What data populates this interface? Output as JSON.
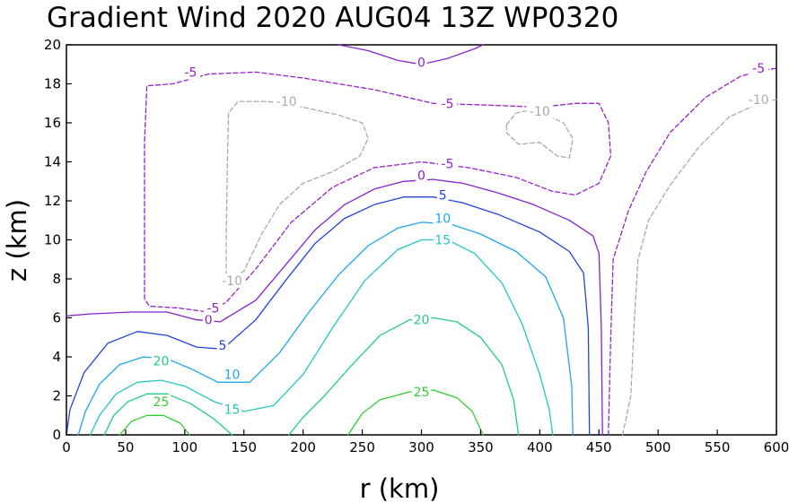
{
  "chart_data": {
    "type": "contour",
    "title": "Gradient Wind 2020 AUG04 13Z  WP0320",
    "xlabel": "r (km)",
    "ylabel": "z (km)",
    "xlim": [
      0,
      600
    ],
    "ylim": [
      0,
      20
    ],
    "x_ticks": [
      0,
      50,
      100,
      150,
      200,
      250,
      300,
      350,
      400,
      450,
      500,
      550,
      600
    ],
    "y_ticks": [
      0,
      2,
      4,
      6,
      8,
      10,
      12,
      14,
      16,
      18,
      20
    ],
    "x_tick_labels": [
      "0",
      "50",
      "100",
      "150",
      "200",
      "250",
      "300",
      "350",
      "400",
      "450",
      "500",
      "550",
      "600"
    ],
    "y_tick_labels": [
      "0",
      "2",
      "4",
      "6",
      "8",
      "10",
      "12",
      "14",
      "16",
      "18",
      "20"
    ],
    "grid": false,
    "contours": [
      {
        "level": 25,
        "label": "25",
        "color": "#33cc33",
        "dash": false,
        "lines": [
          [
            [
              45,
              0
            ],
            [
              55,
              0.7
            ],
            [
              68,
              1.0
            ],
            [
              82,
              1.0
            ],
            [
              96,
              0.6
            ],
            [
              104,
              0
            ]
          ],
          [
            [
              238,
              0
            ],
            [
              250,
              1.1
            ],
            [
              265,
              1.8
            ],
            [
              290,
              2.2
            ],
            [
              310,
              2.3
            ],
            [
              330,
              1.9
            ],
            [
              343,
              1.2
            ],
            [
              352,
              0
            ]
          ]
        ],
        "labels": [
          {
            "x": 80,
            "y": 1.7
          },
          {
            "x": 300,
            "y": 2.2
          }
        ]
      },
      {
        "level": 20,
        "label": "20",
        "color": "#22cc88",
        "dash": false,
        "lines": [
          [
            [
              32,
              0
            ],
            [
              40,
              1.0
            ],
            [
              52,
              1.7
            ],
            [
              68,
              2.1
            ],
            [
              85,
              2.1
            ],
            [
              105,
              1.6
            ],
            [
              125,
              0.8
            ],
            [
              140,
              0
            ]
          ],
          [
            [
              188,
              0
            ],
            [
              200,
              0.9
            ],
            [
              218,
              2.0
            ],
            [
              240,
              3.5
            ],
            [
              265,
              5.1
            ],
            [
              290,
              5.9
            ],
            [
              310,
              6.0
            ],
            [
              330,
              5.8
            ],
            [
              350,
              5.0
            ],
            [
              368,
              3.6
            ],
            [
              378,
              1.8
            ],
            [
              382,
              0
            ]
          ]
        ],
        "labels": [
          {
            "x": 80,
            "y": 3.8
          },
          {
            "x": 300,
            "y": 5.9
          }
        ]
      },
      {
        "level": 15,
        "label": "15",
        "color": "#22c8c0",
        "dash": false,
        "lines": [
          [
            [
              20,
              0
            ],
            [
              28,
              1.0
            ],
            [
              42,
              2.1
            ],
            [
              60,
              2.7
            ],
            [
              80,
              2.8
            ],
            [
              100,
              2.5
            ],
            [
              125,
              1.7
            ],
            [
              150,
              1.2
            ],
            [
              175,
              1.5
            ],
            [
              200,
              3.1
            ],
            [
              225,
              5.5
            ],
            [
              252,
              7.9
            ],
            [
              280,
              9.5
            ],
            [
              300,
              10.0
            ],
            [
              322,
              10.0
            ],
            [
              345,
              9.3
            ],
            [
              368,
              7.8
            ],
            [
              385,
              5.7
            ],
            [
              400,
              3.1
            ],
            [
              408,
              1.3
            ],
            [
              411,
              0
            ]
          ]
        ],
        "labels": [
          {
            "x": 140,
            "y": 1.3
          },
          {
            "x": 318,
            "y": 10.0
          }
        ]
      },
      {
        "level": 10,
        "label": "10",
        "color": "#1ea6f0",
        "dash": false,
        "lines": [
          [
            [
              10,
              0
            ],
            [
              16,
              1.2
            ],
            [
              28,
              2.6
            ],
            [
              45,
              3.6
            ],
            [
              65,
              4.0
            ],
            [
              85,
              3.9
            ],
            [
              105,
              3.4
            ],
            [
              128,
              2.7
            ],
            [
              155,
              2.7
            ],
            [
              180,
              4.2
            ],
            [
              205,
              6.3
            ],
            [
              230,
              8.2
            ],
            [
              255,
              9.7
            ],
            [
              280,
              10.6
            ],
            [
              300,
              10.9
            ],
            [
              325,
              10.8
            ],
            [
              350,
              10.3
            ],
            [
              380,
              9.4
            ],
            [
              405,
              8.1
            ],
            [
              420,
              6.0
            ],
            [
              427,
              2.5
            ],
            [
              428,
              0
            ]
          ]
        ],
        "labels": [
          {
            "x": 140,
            "y": 3.1
          },
          {
            "x": 318,
            "y": 11.1
          }
        ]
      },
      {
        "level": 5,
        "label": "5",
        "color": "#2244dd",
        "dash": false,
        "lines": [
          [
            [
              0,
              0
            ],
            [
              3,
              1.3
            ],
            [
              15,
              3.2
            ],
            [
              35,
              4.7
            ],
            [
              60,
              5.3
            ],
            [
              85,
              5.1
            ],
            [
              110,
              4.5
            ],
            [
              132,
              4.4
            ],
            [
              160,
              5.9
            ],
            [
              185,
              7.9
            ],
            [
              210,
              9.8
            ],
            [
              235,
              11.1
            ],
            [
              260,
              11.8
            ],
            [
              285,
              12.2
            ],
            [
              310,
              12.2
            ],
            [
              335,
              11.9
            ],
            [
              365,
              11.3
            ],
            [
              400,
              10.4
            ],
            [
              425,
              9.4
            ],
            [
              437,
              8.3
            ],
            [
              441,
              5.5
            ],
            [
              442,
              0
            ]
          ]
        ],
        "labels": [
          {
            "x": 132,
            "y": 4.6
          },
          {
            "x": 318,
            "y": 12.3
          }
        ]
      },
      {
        "level": 0,
        "label": "0",
        "color": "#8822cc",
        "dash": false,
        "lines": [
          [
            [
              0,
              6.1
            ],
            [
              20,
              6.2
            ],
            [
              55,
              6.3
            ],
            [
              85,
              6.3
            ],
            [
              110,
              5.9
            ],
            [
              130,
              5.8
            ],
            [
              160,
              6.9
            ],
            [
              185,
              8.7
            ],
            [
              210,
              10.5
            ],
            [
              235,
              11.8
            ],
            [
              260,
              12.6
            ],
            [
              285,
              13.0
            ],
            [
              310,
              13.1
            ],
            [
              335,
              12.9
            ],
            [
              365,
              12.4
            ],
            [
              395,
              11.8
            ],
            [
              425,
              11.0
            ],
            [
              445,
              10.2
            ],
            [
              450,
              9.3
            ],
            [
              452,
              5.5
            ],
            [
              453,
              0
            ]
          ],
          [
            [
              230,
              20
            ],
            [
              255,
              19.7
            ],
            [
              280,
              19.2
            ],
            [
              300,
              19.0
            ],
            [
              322,
              19.3
            ],
            [
              345,
              19.8
            ],
            [
              352,
              20
            ]
          ]
        ],
        "labels": [
          {
            "x": 120,
            "y": 5.9
          },
          {
            "x": 300,
            "y": 13.3
          },
          {
            "x": 300,
            "y": 19.1
          }
        ]
      },
      {
        "level": -5,
        "label": "-5",
        "color": "#9922cc",
        "dash": true,
        "lines": [
          [
            [
              458,
              0
            ],
            [
              460,
              5.0
            ],
            [
              462,
              9.0
            ],
            [
              475,
              11.5
            ],
            [
              490,
              13.5
            ],
            [
              510,
              15.5
            ],
            [
              540,
              17.3
            ],
            [
              570,
              18.4
            ],
            [
              590,
              18.7
            ],
            [
              600,
              18.8
            ]
          ],
          [
            [
              120,
              6.3
            ],
            [
              135,
              6.8
            ],
            [
              160,
              8.5
            ],
            [
              190,
              10.9
            ],
            [
              225,
              12.7
            ],
            [
              260,
              13.7
            ],
            [
              300,
              14.0
            ],
            [
              340,
              13.7
            ],
            [
              380,
              13.2
            ],
            [
              410,
              12.5
            ],
            [
              430,
              12.3
            ],
            [
              450,
              12.9
            ],
            [
              460,
              14.3
            ],
            [
              458,
              16.0
            ],
            [
              450,
              17.0
            ],
            [
              430,
              17.0
            ],
            [
              400,
              16.8
            ],
            [
              360,
              16.9
            ],
            [
              310,
              17.0
            ],
            [
              260,
              17.7
            ],
            [
              200,
              18.3
            ],
            [
              160,
              18.6
            ],
            [
              120,
              18.5
            ],
            [
              90,
              18.0
            ],
            [
              68,
              17.9
            ],
            [
              66,
              15.0
            ],
            [
              66,
              7.0
            ],
            [
              70,
              6.6
            ],
            [
              95,
              6.5
            ],
            [
              120,
              6.3
            ]
          ]
        ],
        "labels": [
          {
            "x": 105,
            "y": 18.6
          },
          {
            "x": 322,
            "y": 17.0
          },
          {
            "x": 322,
            "y": 13.9
          },
          {
            "x": 124,
            "y": 6.5
          },
          {
            "x": 585,
            "y": 18.8
          }
        ]
      },
      {
        "level": -10,
        "label": "-10",
        "color": "#aaaaaa",
        "dash": true,
        "lines": [
          [
            [
              470,
              0
            ],
            [
              477,
              2.0
            ],
            [
              480,
              6.0
            ],
            [
              483,
              9.0
            ],
            [
              492,
              11.0
            ],
            [
              510,
              12.8
            ],
            [
              535,
              14.8
            ],
            [
              560,
              16.3
            ],
            [
              585,
              17.0
            ],
            [
              600,
              17.2
            ]
          ],
          [
            [
              135,
              7.8
            ],
            [
              135,
              10.0
            ],
            [
              136,
              14.0
            ],
            [
              137,
              16.5
            ],
            [
              145,
              17.1
            ],
            [
              170,
              17.1
            ],
            [
              200,
              16.8
            ],
            [
              230,
              16.4
            ],
            [
              250,
              16.0
            ],
            [
              255,
              15.2
            ],
            [
              248,
              14.3
            ],
            [
              225,
              13.5
            ],
            [
              200,
              12.9
            ],
            [
              180,
              11.8
            ],
            [
              165,
              10.3
            ],
            [
              150,
              8.4
            ],
            [
              135,
              7.8
            ]
          ],
          [
            [
              372,
              15.9
            ],
            [
              380,
              16.5
            ],
            [
              395,
              16.7
            ],
            [
              420,
              16.0
            ],
            [
              428,
              15.2
            ],
            [
              425,
              14.2
            ],
            [
              415,
              14.3
            ],
            [
              400,
              15.0
            ],
            [
              382,
              14.9
            ],
            [
              372,
              15.5
            ],
            [
              372,
              15.9
            ]
          ]
        ],
        "labels": [
          {
            "x": 186,
            "y": 17.1
          },
          {
            "x": 400,
            "y": 16.6
          },
          {
            "x": 140,
            "y": 7.9
          },
          {
            "x": 585,
            "y": 17.2
          }
        ]
      }
    ]
  }
}
